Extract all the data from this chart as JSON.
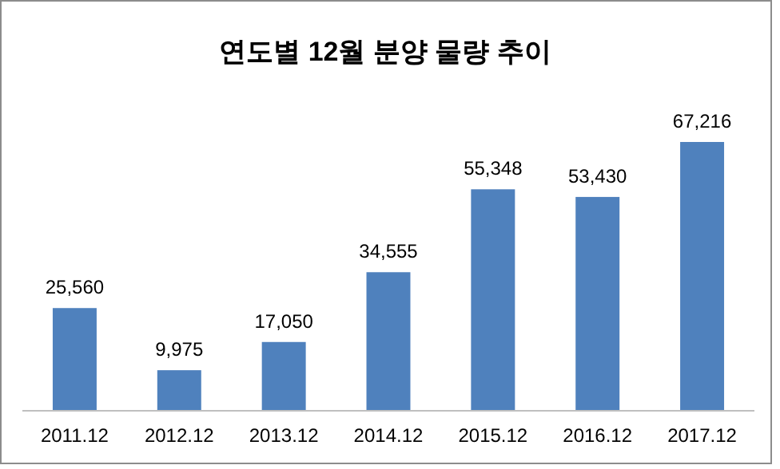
{
  "chart_data": {
    "type": "bar",
    "title": "연도별 12월 분양 물량 추이",
    "categories": [
      "2011.12",
      "2012.12",
      "2013.12",
      "2014.12",
      "2015.12",
      "2016.12",
      "2017.12"
    ],
    "values": [
      25560,
      9975,
      17050,
      34555,
      55348,
      53430,
      67216
    ],
    "value_labels": [
      "25,560",
      "9,975",
      "17,050",
      "34,555",
      "55,348",
      "53,430",
      "67,216"
    ],
    "color": "#4f81bd"
  }
}
